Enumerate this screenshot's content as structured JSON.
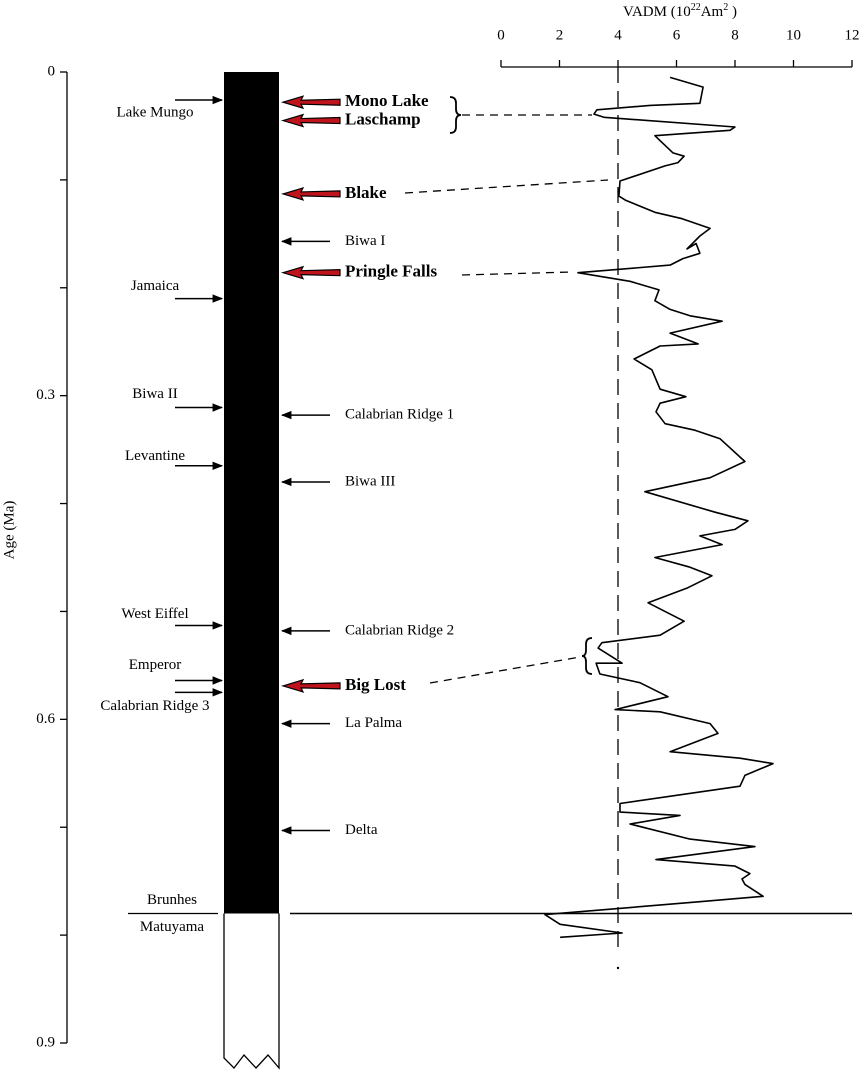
{
  "chart_data": {
    "type": "line",
    "x_label_parts": [
      "VADM (10",
      "22",
      "Am",
      "2",
      " )"
    ],
    "y_label": "Age (Ma)",
    "xlim": [
      0,
      12
    ],
    "xticks": [
      0,
      2,
      4,
      6,
      8,
      10,
      12
    ],
    "ylim": [
      0,
      0.9
    ],
    "yticks": [
      0,
      0.3,
      0.6,
      0.9
    ],
    "y_minor_ticks": [
      0.1,
      0.2,
      0.4,
      0.5,
      0.7,
      0.8
    ],
    "y_inverted": true,
    "threshold_x": 4,
    "series": [
      {
        "color": "#000000",
        "x": [
          5.78,
          6.91,
          6.8,
          5.09,
          3.28,
          3.18,
          3.52,
          8.0,
          7.83,
          5.26,
          5.88,
          6.26,
          6.05,
          5.61,
          4.07,
          4.03,
          4.27,
          5.26,
          6.19,
          7.15,
          6.8,
          6.36,
          6.67,
          6.8,
          6.22,
          5.78,
          2.63,
          4.41,
          5.4,
          5.26,
          5.78,
          6.46,
          7.56,
          5.78,
          6.74,
          5.44,
          4.55,
          5.16,
          5.44,
          6.32,
          5.44,
          5.3,
          5.61,
          6.63,
          7.49,
          8.34,
          7.15,
          4.92,
          7.32,
          8.44,
          8.0,
          6.8,
          7.56,
          5.26,
          6.46,
          7.21,
          6.39,
          5.03,
          6.26,
          5.44,
          3.45,
          3.32,
          4.14,
          3.25,
          3.38,
          4.75,
          5.71,
          3.9,
          5.44,
          7.15,
          7.42,
          5.78,
          8.17,
          9.3,
          8.34,
          8.17,
          4.07,
          4.07,
          6.12,
          4.41,
          6.46,
          8.68,
          5.3,
          8.0,
          8.51,
          8.24,
          8.34,
          8.96,
          6.8,
          1.5,
          2.02,
          4.14,
          2.02
        ],
        "y": [
          0.005,
          0.014,
          0.029,
          0.031,
          0.035,
          0.039,
          0.042,
          0.051,
          0.054,
          0.059,
          0.075,
          0.078,
          0.084,
          0.087,
          0.101,
          0.115,
          0.119,
          0.13,
          0.136,
          0.145,
          0.152,
          0.164,
          0.159,
          0.168,
          0.173,
          0.179,
          0.186,
          0.194,
          0.202,
          0.212,
          0.22,
          0.226,
          0.231,
          0.242,
          0.252,
          0.254,
          0.266,
          0.276,
          0.294,
          0.301,
          0.307,
          0.315,
          0.326,
          0.332,
          0.34,
          0.361,
          0.376,
          0.389,
          0.408,
          0.416,
          0.424,
          0.43,
          0.438,
          0.45,
          0.459,
          0.467,
          0.478,
          0.492,
          0.509,
          0.522,
          0.529,
          0.534,
          0.548,
          0.548,
          0.558,
          0.566,
          0.579,
          0.591,
          0.593,
          0.604,
          0.613,
          0.63,
          0.636,
          0.641,
          0.652,
          0.662,
          0.678,
          0.686,
          0.689,
          0.697,
          0.711,
          0.718,
          0.73,
          0.736,
          0.743,
          0.748,
          0.753,
          0.764,
          0.769,
          0.781,
          0.79,
          0.798,
          0.802
        ]
      }
    ],
    "boundary": {
      "age": 0.78,
      "upper": "Brunhes",
      "lower": "Matuyama"
    },
    "excursions_left": [
      {
        "name": "Lake Mungo",
        "age": 0.026
      },
      {
        "name": "Jamaica",
        "age": 0.21
      },
      {
        "name": "Biwa II",
        "age": 0.311
      },
      {
        "name": "Levantine",
        "age": 0.365
      },
      {
        "name": "West Eiffel",
        "age": 0.513
      },
      {
        "name": "Emperor",
        "age": 0.564
      },
      {
        "name": "Calabrian Ridge 3",
        "age": 0.575
      }
    ],
    "excursions_right": [
      {
        "name": "Mono Lake",
        "age": 0.028,
        "highlight": true
      },
      {
        "name": "Laschamp",
        "age": 0.045,
        "highlight": true
      },
      {
        "name": "Blake",
        "age": 0.113,
        "highlight": true
      },
      {
        "name": "Biwa I",
        "age": 0.157,
        "highlight": false
      },
      {
        "name": "Pringle Falls",
        "age": 0.186,
        "highlight": true
      },
      {
        "name": "Calabrian Ridge 1",
        "age": 0.318,
        "highlight": false
      },
      {
        "name": "Biwa III",
        "age": 0.38,
        "highlight": false
      },
      {
        "name": "Calabrian Ridge 2",
        "age": 0.518,
        "highlight": false
      },
      {
        "name": "Big Lost",
        "age": 0.569,
        "highlight": true
      },
      {
        "name": "La Palma",
        "age": 0.604,
        "highlight": false
      },
      {
        "name": "Delta",
        "age": 0.703,
        "highlight": false
      }
    ]
  }
}
